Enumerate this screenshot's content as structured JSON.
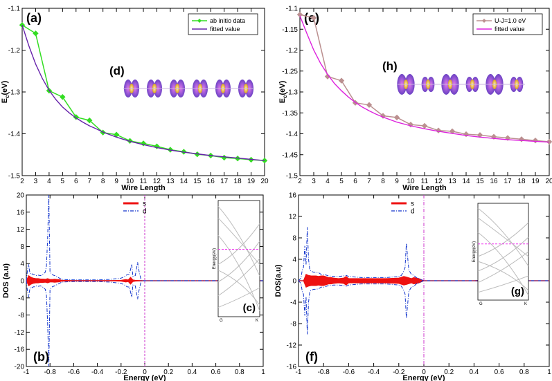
{
  "chart_data": [
    {
      "id": "a",
      "type": "line",
      "panel_label": "(a)",
      "xlabel": "Wire Length",
      "ylabel_main": "E",
      "ylabel_sub": "c",
      "ylabel_unit": "(eV)",
      "xlim": [
        2,
        20
      ],
      "ylim": [
        -1.5,
        -1.1
      ],
      "xticks": [
        "2",
        "3",
        "4",
        "5",
        "6",
        "7",
        "8",
        "9",
        "10",
        "11",
        "12",
        "13",
        "14",
        "15",
        "16",
        "17",
        "18",
        "19",
        "20"
      ],
      "yticks": [
        "-1.1",
        "-1.2",
        "-1.3",
        "-1.4",
        "-1.5"
      ],
      "inset_label": "(d)",
      "series": [
        {
          "name": "ab initio data",
          "color": "#33dd22",
          "x": [
            2,
            3,
            4,
            5,
            6,
            7,
            8,
            9,
            10,
            11,
            12,
            13,
            14,
            15,
            16,
            17,
            18,
            19,
            20
          ],
          "y": [
            -1.14,
            -1.16,
            -1.297,
            -1.312,
            -1.36,
            -1.368,
            -1.397,
            -1.402,
            -1.417,
            -1.423,
            -1.43,
            -1.438,
            -1.443,
            -1.449,
            -1.452,
            -1.457,
            -1.459,
            -1.462,
            -1.464
          ]
        },
        {
          "name": "fitted value",
          "color": "#6622aa",
          "x": [
            2,
            2.5,
            3,
            3.5,
            4,
            4.5,
            5,
            5.5,
            6,
            6.5,
            7,
            7.5,
            8,
            9,
            10,
            11,
            12,
            13,
            14,
            15,
            16,
            17,
            18,
            19,
            20
          ],
          "y": [
            -1.14,
            -1.19,
            -1.233,
            -1.268,
            -1.296,
            -1.318,
            -1.336,
            -1.35,
            -1.362,
            -1.372,
            -1.381,
            -1.388,
            -1.396,
            -1.408,
            -1.418,
            -1.426,
            -1.433,
            -1.439,
            -1.444,
            -1.448,
            -1.452,
            -1.455,
            -1.458,
            -1.461,
            -1.464
          ]
        }
      ]
    },
    {
      "id": "e",
      "type": "line",
      "panel_label": "(e)",
      "xlabel": "Wire Length",
      "ylabel_main": "E",
      "ylabel_sub": "c",
      "ylabel_unit": "(eV)",
      "xlim": [
        2,
        20
      ],
      "ylim": [
        -1.5,
        -1.1
      ],
      "xticks": [
        "2",
        "3",
        "4",
        "5",
        "6",
        "7",
        "8",
        "9",
        "10",
        "11",
        "12",
        "13",
        "14",
        "15",
        "16",
        "17",
        "18",
        "19",
        "20"
      ],
      "yticks": [
        "-1.1",
        "-1.15",
        "-1.2",
        "-1.25",
        "-1.3",
        "-1.35",
        "-1.4",
        "-1.45",
        "-1.5"
      ],
      "inset_label": "(h)",
      "series": [
        {
          "name": "U-J=1.0 eV",
          "color": "#bb9090",
          "x": [
            2,
            3,
            4,
            5,
            6,
            7,
            8,
            9,
            10,
            11,
            12,
            13,
            14,
            15,
            16,
            17,
            18,
            19,
            20
          ],
          "y": [
            -1.115,
            -1.123,
            -1.263,
            -1.273,
            -1.326,
            -1.331,
            -1.357,
            -1.361,
            -1.378,
            -1.381,
            -1.392,
            -1.394,
            -1.401,
            -1.403,
            -1.407,
            -1.41,
            -1.413,
            -1.416,
            -1.419
          ]
        },
        {
          "name": "fitted value",
          "color": "#dd22dd",
          "x": [
            2,
            2.5,
            3,
            3.5,
            4,
            4.5,
            5,
            5.5,
            6,
            6.5,
            7,
            7.5,
            8,
            9,
            10,
            11,
            12,
            13,
            14,
            15,
            16,
            17,
            18,
            19,
            20
          ],
          "y": [
            -1.118,
            -1.16,
            -1.2,
            -1.232,
            -1.258,
            -1.28,
            -1.297,
            -1.312,
            -1.325,
            -1.336,
            -1.345,
            -1.353,
            -1.36,
            -1.372,
            -1.381,
            -1.388,
            -1.394,
            -1.399,
            -1.404,
            -1.408,
            -1.411,
            -1.414,
            -1.416,
            -1.418,
            -1.42
          ]
        }
      ]
    },
    {
      "id": "b",
      "type": "line",
      "panel_label": "(b)",
      "xlabel": "Energy (eV)",
      "ylabel": "DOS (a.u)",
      "xlim": [
        -1,
        1
      ],
      "ylim": [
        -20,
        20
      ],
      "xticks": [
        "-1",
        "-0.8",
        "-0.6",
        "-0.4",
        "-0.2",
        "0",
        "0.2",
        "0.4",
        "0.6",
        "0.8",
        "1"
      ],
      "yticks": [
        "20",
        "16",
        "12",
        "8",
        "4",
        "0",
        "-4",
        "-8",
        "-12",
        "-16",
        "-20"
      ],
      "fermi_level": 0,
      "inset_label": "(c)",
      "inset_ylabel": "Energy(eV)",
      "inset_xticks": [
        "G",
        "K"
      ],
      "series": [
        {
          "name": "s",
          "color": "#ee1111",
          "x": [
            -1,
            -0.98,
            -0.96,
            -0.94,
            -0.92,
            -0.9,
            -0.88,
            -0.86,
            -0.84,
            -0.82,
            -0.8,
            -0.78,
            -0.76,
            -0.74,
            -0.72,
            -0.7,
            -0.6,
            -0.5,
            -0.4,
            -0.3,
            -0.2,
            -0.16,
            -0.14,
            -0.12,
            -0.1,
            -0.08,
            0,
            0.2,
            0.4,
            0.6,
            0.8,
            1
          ],
          "y": [
            0,
            1.2,
            0.8,
            0.6,
            0.5,
            0.5,
            0.4,
            0.4,
            0.35,
            0.5,
            0.3,
            0.3,
            0.35,
            0.3,
            0.25,
            0.1,
            0.05,
            0.05,
            0.05,
            0.05,
            0.1,
            0.3,
            0.2,
            0.8,
            0.2,
            0.1,
            0,
            0,
            0,
            0,
            0,
            0
          ]
        },
        {
          "name": "d",
          "color": "#1133cc",
          "mirror": true,
          "x": [
            -1,
            -0.99,
            -0.98,
            -0.97,
            -0.96,
            -0.95,
            -0.94,
            -0.93,
            -0.92,
            -0.9,
            -0.88,
            -0.86,
            -0.84,
            -0.83,
            -0.82,
            -0.81,
            -0.8,
            -0.78,
            -0.76,
            -0.74,
            -0.72,
            -0.7,
            -0.6,
            -0.5,
            -0.4,
            -0.3,
            -0.2,
            -0.17,
            -0.15,
            -0.13,
            -0.11,
            -0.1,
            -0.08,
            -0.06,
            -0.05,
            -0.03,
            0,
            0.2,
            0.4,
            0.6,
            0.8,
            1
          ],
          "y": [
            0,
            2.5,
            3.8,
            1.8,
            1.5,
            1.6,
            1.4,
            1.4,
            1.2,
            1.3,
            1.2,
            1.5,
            2,
            3.5,
            10,
            20,
            2,
            1.4,
            1.2,
            0.9,
            0.6,
            0.3,
            0.2,
            0.2,
            0.2,
            0.3,
            0.6,
            1,
            1.4,
            1.5,
            3.8,
            1,
            1.2,
            4.3,
            2.5,
            0,
            0,
            0,
            0,
            0,
            0,
            0
          ]
        }
      ]
    },
    {
      "id": "f",
      "type": "line",
      "panel_label": "(f)",
      "xlabel": "Energy (eV)",
      "ylabel": "DOS(a.u)",
      "xlim": [
        -1,
        1
      ],
      "ylim": [
        -16,
        16
      ],
      "xticks": [
        "-1",
        "-0.8",
        "-0.6",
        "-0.4",
        "-0.2",
        "0",
        "0.2",
        "0.4",
        "0.6",
        "0.8",
        "1"
      ],
      "yticks": [
        "16",
        "12",
        "8",
        "4",
        "0",
        "-4",
        "-8",
        "-12",
        "-16"
      ],
      "fermi_level": 0,
      "inset_label": "(g)",
      "inset_ylabel": "Energy(eV)",
      "inset_xticks": [
        "G",
        "K"
      ],
      "series": [
        {
          "name": "s",
          "color": "#ee1111",
          "x": [
            -1,
            -0.96,
            -0.94,
            -0.92,
            -0.9,
            -0.88,
            -0.86,
            -0.84,
            -0.82,
            -0.8,
            -0.76,
            -0.74,
            -0.72,
            -0.68,
            -0.64,
            -0.62,
            -0.6,
            -0.5,
            -0.4,
            -0.3,
            -0.2,
            -0.16,
            -0.14,
            -0.1,
            -0.08,
            -0.04,
            0,
            0.2,
            0.4,
            0.45,
            0.6,
            0.8,
            1
          ],
          "y": [
            0,
            0,
            1.2,
            1,
            0.9,
            0.9,
            0.9,
            0.8,
            0.9,
            0.9,
            0.6,
            0.6,
            0.5,
            0.4,
            0.5,
            0.8,
            0.4,
            0.4,
            0.4,
            0.4,
            0.5,
            0.8,
            0.7,
            0.4,
            0.6,
            0.4,
            0,
            0,
            0,
            0.1,
            0,
            0,
            0
          ]
        },
        {
          "name": "d",
          "color": "#1133cc",
          "mirror": true,
          "x": [
            -1,
            -0.98,
            -0.97,
            -0.96,
            -0.95,
            -0.94,
            -0.93,
            -0.92,
            -0.91,
            -0.9,
            -0.88,
            -0.86,
            -0.84,
            -0.82,
            -0.8,
            -0.76,
            -0.72,
            -0.68,
            -0.64,
            -0.62,
            -0.6,
            -0.5,
            -0.4,
            -0.3,
            -0.2,
            -0.18,
            -0.16,
            -0.15,
            -0.14,
            -0.12,
            -0.1,
            -0.08,
            -0.06,
            0,
            0.2,
            0.4,
            0.6,
            0.8,
            1
          ],
          "y": [
            0,
            0.5,
            2,
            2.5,
            6.5,
            3,
            10,
            4,
            2,
            1.8,
            1.6,
            1.6,
            1.5,
            1.2,
            1.2,
            0.9,
            0.8,
            0.8,
            0.9,
            1,
            0.8,
            0.6,
            0.6,
            0.6,
            0.8,
            1,
            1.8,
            2.5,
            7,
            2,
            1.2,
            1,
            0.6,
            0,
            0,
            0,
            0,
            0,
            0
          ]
        }
      ]
    }
  ]
}
